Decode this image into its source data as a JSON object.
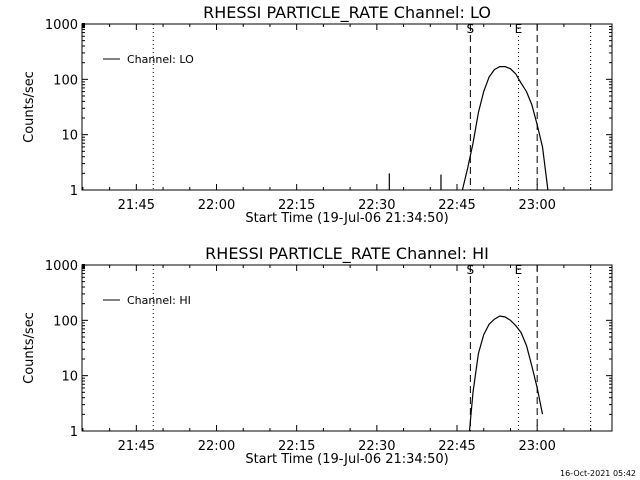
{
  "footer": {
    "date": "16-Oct-2021 05:42"
  },
  "chart_data": [
    {
      "type": "line",
      "title": "RHESSI PARTICLE_RATE Channel: LO",
      "xlabel": "Start Time (19-Jul-06 21:34:50)",
      "ylabel": "Counts/sec",
      "legend": {
        "label": "Channel: LO",
        "position": "top-left"
      },
      "yscale": "log",
      "ylim": [
        1,
        1000
      ],
      "ytick_labels": [
        "1",
        "10",
        "100",
        "1000"
      ],
      "xlim": [
        "21:34:50",
        "23:14:00"
      ],
      "xtick_labels": [
        "21:45",
        "22:00",
        "22:15",
        "22:30",
        "22:45",
        "23:00"
      ],
      "markers": [
        {
          "label": "",
          "time": "21:48:10",
          "style": "dotted"
        },
        {
          "label": "S",
          "time": "22:47:30",
          "style": "dashed"
        },
        {
          "label": "E",
          "time": "22:56:30",
          "style": "dotted"
        },
        {
          "label": "",
          "time": "23:00:00",
          "style": "dashed"
        },
        {
          "label": "",
          "time": "23:10:00",
          "style": "dotted"
        }
      ],
      "spikes": [
        {
          "x": "22:32:20",
          "y": 2.0
        },
        {
          "x": "22:42:00",
          "y": 1.9
        }
      ],
      "series": [
        {
          "x": [
            "22:46:00",
            "22:47:00",
            "22:48:00",
            "22:49:00",
            "22:50:00",
            "22:51:00",
            "22:52:00",
            "22:53:00",
            "22:54:00",
            "22:55:00",
            "22:56:00",
            "22:57:00",
            "22:58:00",
            "22:59:00",
            "23:00:00",
            "23:01:00",
            "23:02:00"
          ],
          "y": [
            1.0,
            2.5,
            7.0,
            25,
            60,
            110,
            150,
            170,
            170,
            155,
            125,
            85,
            60,
            35,
            15,
            6,
            1.0
          ]
        }
      ]
    },
    {
      "type": "line",
      "title": "RHESSI PARTICLE_RATE Channel: HI",
      "xlabel": "Start Time (19-Jul-06 21:34:50)",
      "ylabel": "Counts/sec",
      "legend": {
        "label": "Channel: HI",
        "position": "top-left"
      },
      "yscale": "log",
      "ylim": [
        1,
        1000
      ],
      "ytick_labels": [
        "1",
        "10",
        "100",
        "1000"
      ],
      "xlim": [
        "21:34:50",
        "23:14:00"
      ],
      "xtick_labels": [
        "21:45",
        "22:00",
        "22:15",
        "22:30",
        "22:45",
        "23:00"
      ],
      "markers": [
        {
          "label": "",
          "time": "21:48:10",
          "style": "dotted"
        },
        {
          "label": "S",
          "time": "22:47:30",
          "style": "dashed"
        },
        {
          "label": "E",
          "time": "22:56:30",
          "style": "dotted"
        },
        {
          "label": "",
          "time": "23:00:00",
          "style": "dashed"
        },
        {
          "label": "",
          "time": "23:10:00",
          "style": "dotted"
        }
      ],
      "spikes": [],
      "series": [
        {
          "x": [
            "22:47:20",
            "22:48:00",
            "22:49:00",
            "22:50:00",
            "22:51:00",
            "22:52:00",
            "22:53:00",
            "22:54:00",
            "22:55:00",
            "22:56:00",
            "22:57:00",
            "22:58:00",
            "22:59:00",
            "23:00:00",
            "23:01:00"
          ],
          "y": [
            1.0,
            5,
            25,
            55,
            85,
            105,
            120,
            115,
            100,
            80,
            60,
            35,
            15,
            6,
            2
          ]
        }
      ]
    }
  ]
}
